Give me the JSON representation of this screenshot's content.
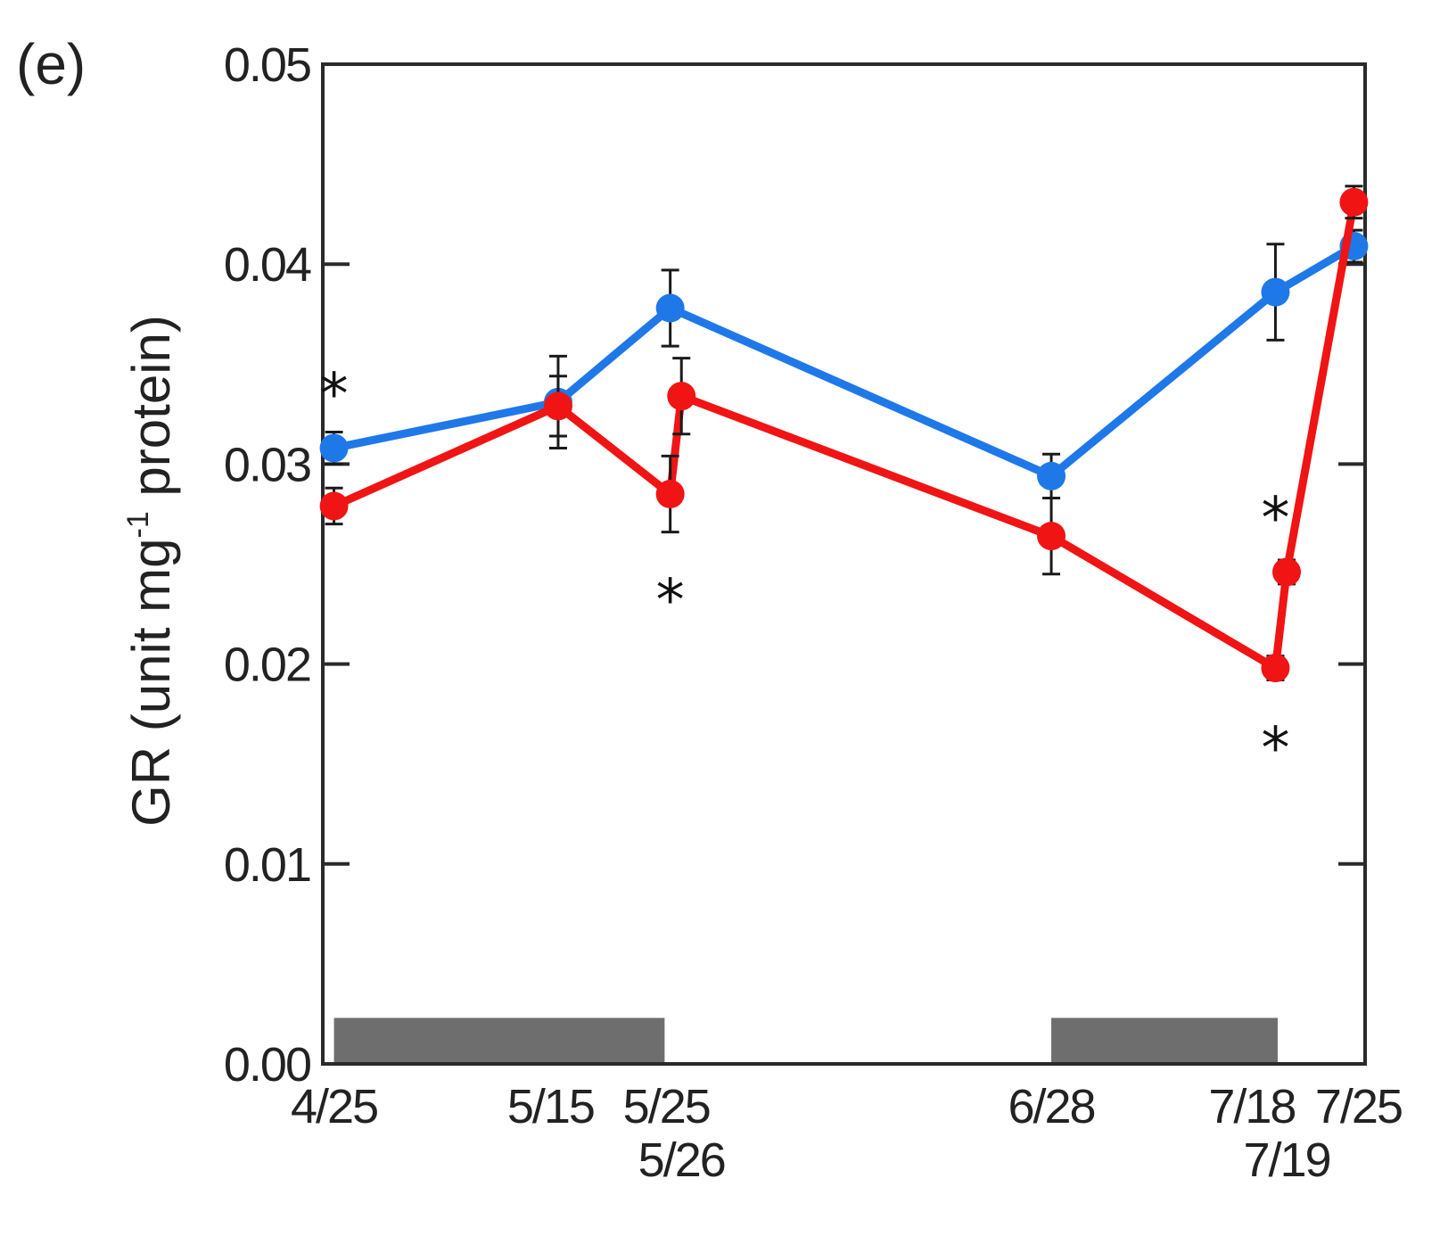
{
  "chart_data": {
    "type": "line",
    "panel_label": "(e)",
    "ylabel_parts": {
      "pre": "GR (unit mg",
      "sup": "-1",
      "post": " protein)"
    },
    "ylim": [
      0.0,
      0.05
    ],
    "yticks": [
      {
        "value": 0.0,
        "label": "0.00"
      },
      {
        "value": 0.01,
        "label": "0.01"
      },
      {
        "value": 0.02,
        "label": "0.02"
      },
      {
        "value": 0.03,
        "label": "0.03"
      },
      {
        "value": 0.04,
        "label": "0.04"
      },
      {
        "value": 0.05,
        "label": "0.05"
      }
    ],
    "xlim": [
      -1,
      92
    ],
    "xticks": [
      {
        "day": 0,
        "label": "4/25",
        "line": 0
      },
      {
        "day": 20,
        "label": "5/15",
        "line": 0
      },
      {
        "day": 30,
        "label": "5/25",
        "line": 0
      },
      {
        "day": 31,
        "label": "5/26",
        "line": 1
      },
      {
        "day": 64,
        "label": "6/28",
        "line": 0
      },
      {
        "day": 84,
        "label": "7/18",
        "line": 0
      },
      {
        "day": 85,
        "label": "7/19",
        "line": 1
      },
      {
        "day": 91,
        "label": "7/25",
        "line": 0
      }
    ],
    "shaded_periods": [
      {
        "start": 0,
        "end": 29.5,
        "height": 0.0023
      },
      {
        "start": 64,
        "end": 84.2,
        "height": 0.0023
      }
    ],
    "series": [
      {
        "name": "blue",
        "color": "#1f78e8",
        "points": [
          {
            "x": 0,
            "y": 0.0308,
            "err": 0.0008
          },
          {
            "x": 20,
            "y": 0.0331,
            "err": 0.0023
          },
          {
            "x": 30,
            "y": 0.0378,
            "err": 0.0019
          },
          {
            "x": 64,
            "y": 0.0294,
            "err": 0.0011
          },
          {
            "x": 84,
            "y": 0.0386,
            "err": 0.0024
          },
          {
            "x": 91,
            "y": 0.0409,
            "err": 0.0008
          }
        ]
      },
      {
        "name": "red",
        "color": "#f01414",
        "points": [
          {
            "x": 0,
            "y": 0.0279,
            "err": 0.0009
          },
          {
            "x": 20,
            "y": 0.0329,
            "err": 0.0015
          },
          {
            "x": 30,
            "y": 0.0285,
            "err": 0.0019
          },
          {
            "x": 31,
            "y": 0.0334,
            "err": 0.0019
          },
          {
            "x": 64,
            "y": 0.0264,
            "err": 0.0019
          },
          {
            "x": 84,
            "y": 0.0198,
            "err": 0.0006
          },
          {
            "x": 85,
            "y": 0.0246,
            "err": 0.0006
          },
          {
            "x": 91,
            "y": 0.0431,
            "err": 0.0008
          }
        ]
      }
    ],
    "annotations": [
      {
        "text": "*",
        "x": 0,
        "y": 0.0335
      },
      {
        "text": "*",
        "x": 30,
        "y": 0.0232
      },
      {
        "text": "*",
        "x": 84,
        "y": 0.0273
      },
      {
        "text": "*",
        "x": 84,
        "y": 0.0158
      }
    ]
  }
}
